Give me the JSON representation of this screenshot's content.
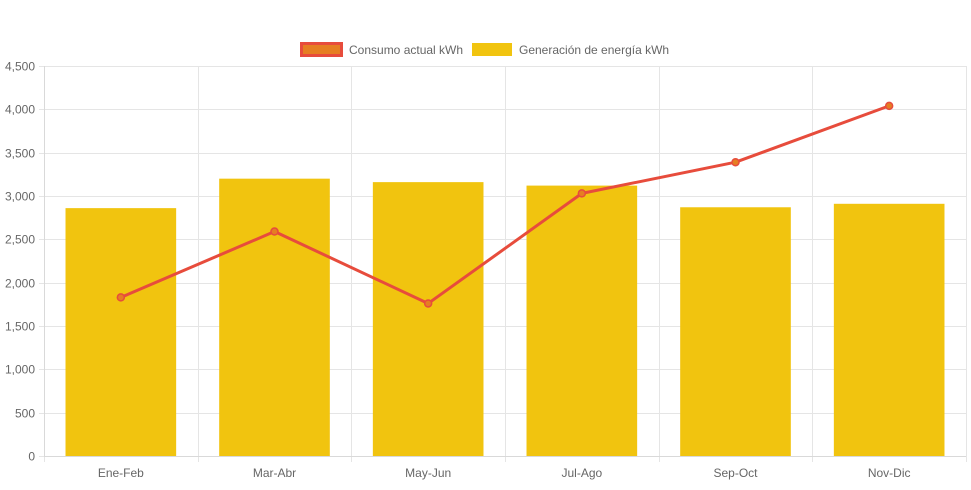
{
  "chart_data": {
    "type": "bar",
    "categories": [
      "Ene-Feb",
      "Mar-Abr",
      "May-Jun",
      "Jul-Ago",
      "Sep-Oct",
      "Nov-Dic"
    ],
    "series": [
      {
        "name": "Consumo actual kWh",
        "type": "line",
        "values": [
          1830,
          2590,
          1760,
          3030,
          3390,
          4040
        ],
        "color": "#e74c3c",
        "point_color": "#e67e22"
      },
      {
        "name": "Generación de energía kWh",
        "type": "bar",
        "values": [
          2860,
          3200,
          3160,
          3120,
          2870,
          2910
        ],
        "color": "#f1c40f"
      }
    ],
    "ylim": [
      0,
      4500
    ],
    "yticks": [
      "0",
      "500",
      "1,000",
      "1,500",
      "2,000",
      "2,500",
      "3,000",
      "3,500",
      "4,000",
      "4,500"
    ],
    "ytick_values": [
      0,
      500,
      1000,
      1500,
      2000,
      2500,
      3000,
      3500,
      4000,
      4500
    ],
    "grid": true,
    "legend_position": "top-center"
  }
}
